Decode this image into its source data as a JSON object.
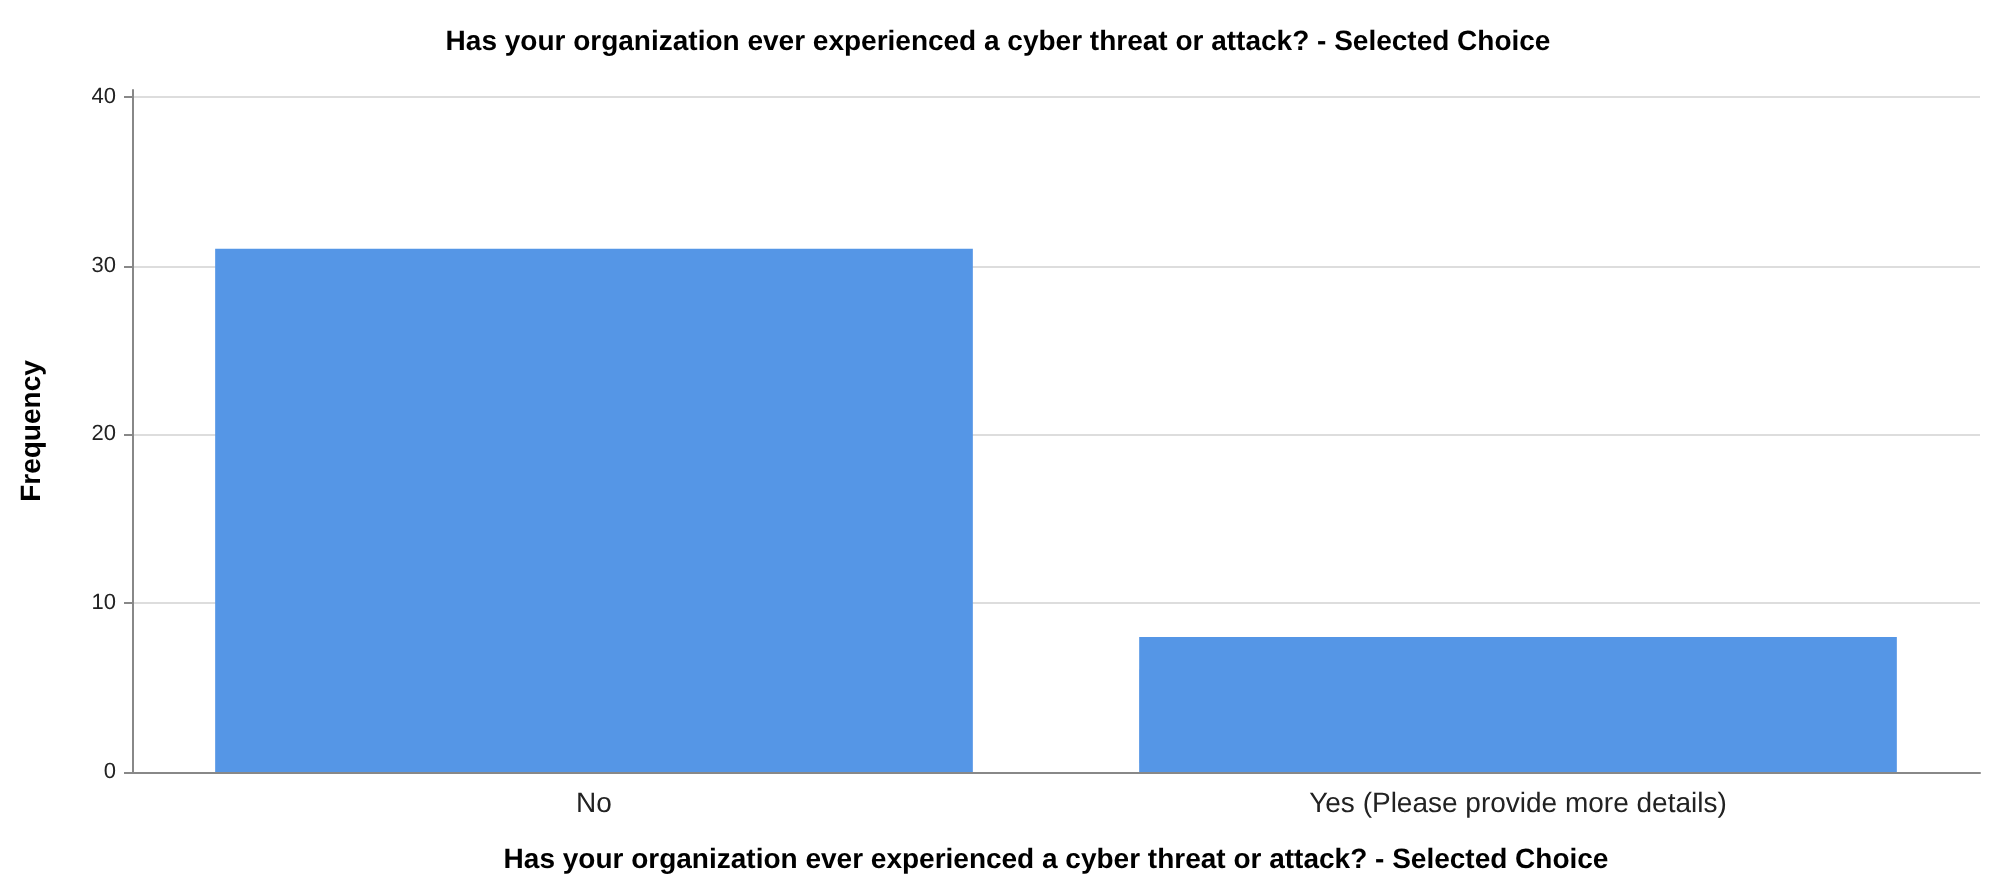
{
  "chart_data": {
    "type": "bar",
    "title": "Has your organization ever experienced a cyber threat or attack? - Selected Choice",
    "xlabel": "Has your organization ever experienced a cyber threat or attack? - Selected Choice",
    "ylabel": "Frequency",
    "categories": [
      "No",
      "Yes (Please provide more details)"
    ],
    "values": [
      31,
      8
    ],
    "color": "#5596e6",
    "ylim": [
      0,
      40.4
    ],
    "yticks": [
      0,
      10,
      20,
      30,
      40
    ],
    "grid": "y"
  }
}
